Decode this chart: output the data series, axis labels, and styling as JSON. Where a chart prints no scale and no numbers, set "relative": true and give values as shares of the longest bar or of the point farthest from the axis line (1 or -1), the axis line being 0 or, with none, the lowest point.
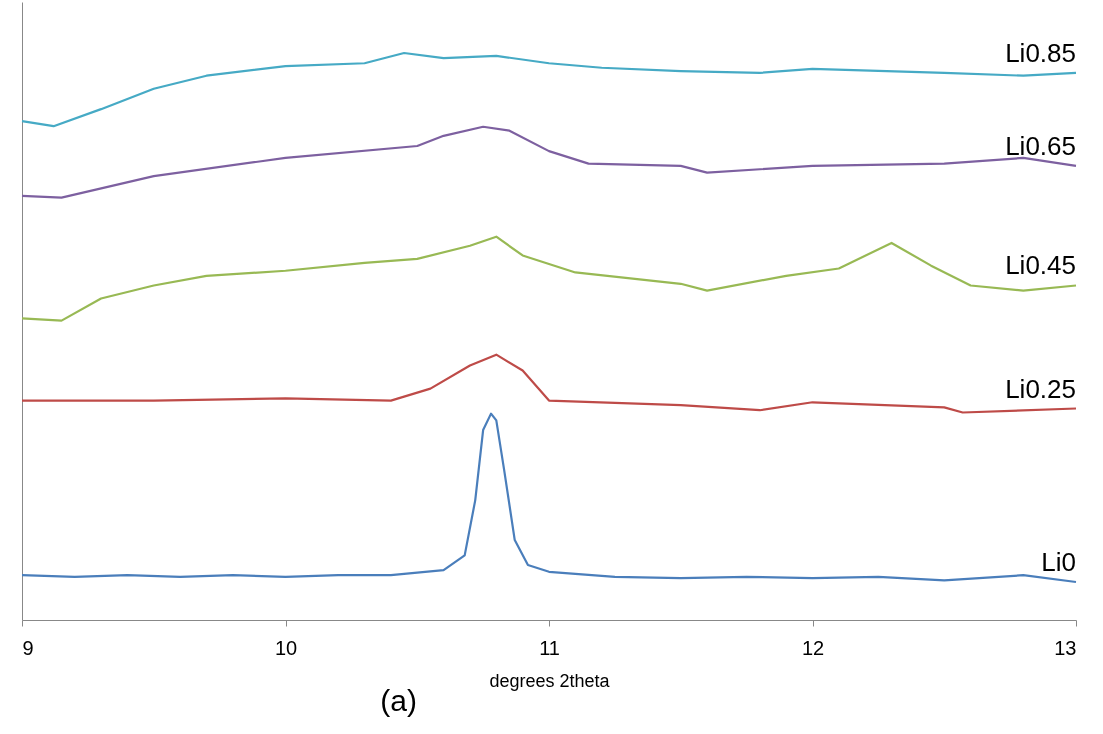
{
  "chart_data": {
    "type": "line",
    "relative": true,
    "xlabel": "degrees 2theta",
    "annotations": [
      "(a)"
    ],
    "xlim": [
      9,
      13
    ],
    "xticks": [
      9,
      10,
      11,
      12,
      13
    ],
    "grid": false,
    "series": [
      {
        "name": "Li0",
        "color": "#4a7ebb",
        "x": [
          9,
          9.2,
          9.4,
          9.6,
          9.8,
          10,
          10.2,
          10.4,
          10.6,
          10.68,
          10.72,
          10.75,
          10.78,
          10.8,
          10.83,
          10.87,
          10.92,
          11,
          11.25,
          11.5,
          11.75,
          12,
          12.25,
          12.5,
          12.8,
          13
        ],
        "values": [
          0.079,
          0.076,
          0.079,
          0.076,
          0.079,
          0.076,
          0.079,
          0.079,
          0.088,
          0.114,
          0.211,
          0.335,
          0.364,
          0.352,
          0.264,
          0.141,
          0.097,
          0.085,
          0.076,
          0.074,
          0.076,
          0.074,
          0.076,
          0.07,
          0.079,
          0.067
        ]
      },
      {
        "name": "Li0.25",
        "color": "#be4b48",
        "x": [
          9,
          9.5,
          10,
          10.4,
          10.55,
          10.7,
          10.8,
          10.9,
          11,
          11.5,
          11.8,
          12,
          12.5,
          12.57,
          13
        ],
        "values": [
          0.387,
          0.387,
          0.391,
          0.387,
          0.408,
          0.449,
          0.468,
          0.44,
          0.387,
          0.379,
          0.37,
          0.384,
          0.375,
          0.366,
          0.373
        ]
      },
      {
        "name": "Li0.45",
        "color": "#98b954",
        "x": [
          9,
          9.15,
          9.3,
          9.5,
          9.7,
          10,
          10.3,
          10.5,
          10.7,
          10.8,
          10.9,
          11.1,
          11.5,
          11.6,
          11.9,
          12.1,
          12.3,
          12.45,
          12.6,
          12.8,
          13
        ],
        "values": [
          0.532,
          0.528,
          0.567,
          0.59,
          0.607,
          0.616,
          0.63,
          0.637,
          0.66,
          0.676,
          0.643,
          0.613,
          0.593,
          0.581,
          0.607,
          0.62,
          0.665,
          0.625,
          0.59,
          0.581,
          0.59
        ]
      },
      {
        "name": "Li0.65",
        "color": "#7d60a0",
        "x": [
          9,
          9.15,
          9.5,
          10,
          10.5,
          10.6,
          10.75,
          10.85,
          11,
          11.15,
          11.5,
          11.6,
          12,
          12.5,
          12.8,
          13
        ],
        "values": [
          0.748,
          0.745,
          0.783,
          0.815,
          0.836,
          0.854,
          0.87,
          0.863,
          0.827,
          0.805,
          0.801,
          0.789,
          0.801,
          0.805,
          0.815,
          0.801
        ]
      },
      {
        "name": "Li0.85",
        "color": "#46aac5",
        "x": [
          9,
          9.12,
          9.3,
          9.5,
          9.7,
          10,
          10.3,
          10.45,
          10.6,
          10.8,
          11,
          11.2,
          11.5,
          11.8,
          12,
          12.5,
          12.8,
          13
        ],
        "values": [
          0.88,
          0.871,
          0.901,
          0.937,
          0.96,
          0.977,
          0.982,
          1.0,
          0.991,
          0.995,
          0.982,
          0.974,
          0.968,
          0.965,
          0.972,
          0.965,
          0.96,
          0.965
        ]
      }
    ]
  }
}
